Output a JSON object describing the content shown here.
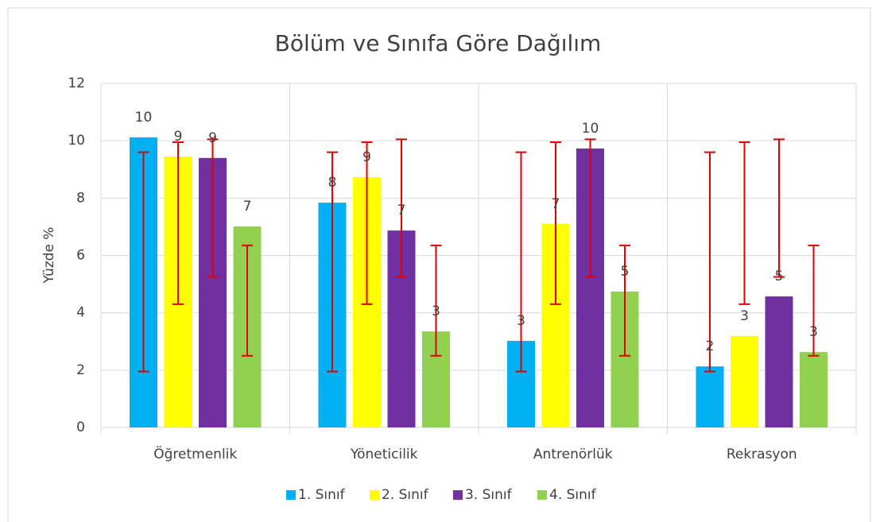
{
  "chart_data": {
    "type": "bar",
    "title": "Bölüm ve Sınıfa Göre Dağılım",
    "y_label": "Yüzde %",
    "categories": [
      "Öğretmenlik",
      "Yöneticilik",
      "Antrenörlük",
      "Rekrasyon"
    ],
    "ylim": [
      0,
      12
    ],
    "yticks": [
      0,
      2,
      4,
      6,
      8,
      10,
      12
    ],
    "grid": true,
    "legend": "bottom",
    "series": [
      {
        "name": "1. Sınıf",
        "color": "#00b0f0",
        "values": [
          10.12,
          7.84,
          3.02,
          2.13
        ],
        "value_labels": [
          "10",
          "8",
          "3",
          "2"
        ],
        "error_low": [
          1.95,
          1.95,
          1.95,
          1.95
        ],
        "error_high": [
          9.6,
          9.6,
          9.6,
          9.6
        ]
      },
      {
        "name": "2. Sınıf",
        "color": "#ffff00",
        "values": [
          9.45,
          8.73,
          7.1,
          3.19
        ],
        "value_labels": [
          "9",
          "9",
          "7",
          "3"
        ],
        "error_low": [
          4.3,
          4.3,
          4.3,
          4.3
        ],
        "error_high": [
          9.95,
          9.95,
          9.95,
          9.95
        ]
      },
      {
        "name": "3. Sınıf",
        "color": "#7030a0",
        "values": [
          9.4,
          6.87,
          9.73,
          4.57
        ],
        "value_labels": [
          "9",
          "7",
          "10",
          "5"
        ],
        "error_low": [
          5.25,
          5.25,
          5.25,
          5.25
        ],
        "error_high": [
          10.05,
          10.05,
          10.05,
          10.05
        ]
      },
      {
        "name": "4. Sınıf",
        "color": "#92d050",
        "values": [
          7.01,
          3.35,
          4.74,
          2.63
        ],
        "value_labels": [
          "7",
          "3",
          "5",
          "3"
        ],
        "error_low": [
          2.5,
          2.5,
          2.5,
          2.5
        ],
        "error_high": [
          6.35,
          6.35,
          6.35,
          6.35
        ]
      }
    ]
  }
}
